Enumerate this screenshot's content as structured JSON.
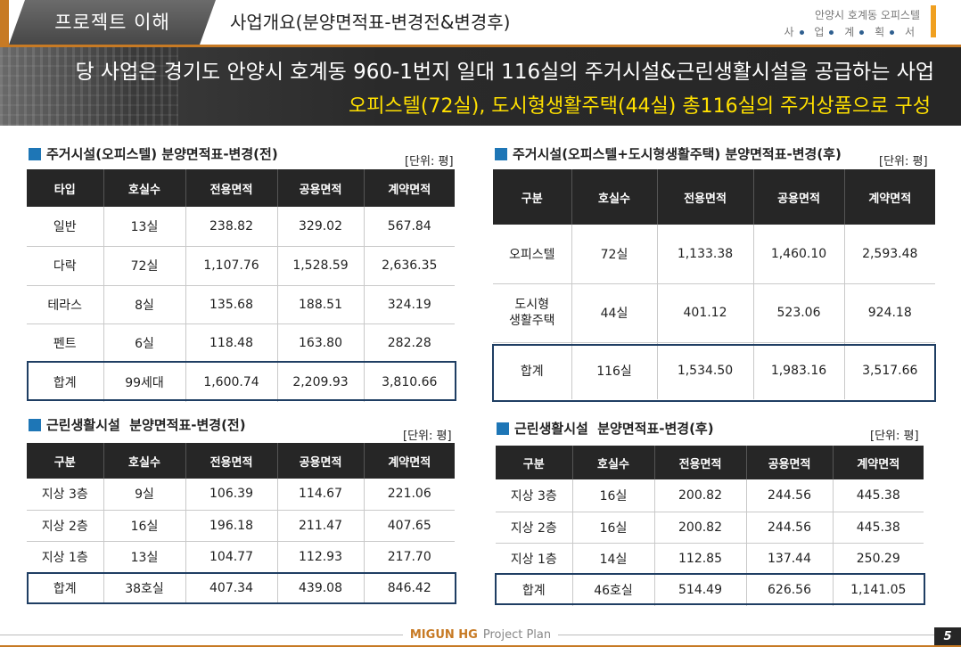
{
  "header": {
    "tab_label": "프로젝트 이해",
    "title": "사업개요(분양면적표-변경전&변경후)",
    "right_line1": "안양시 호계동 오피스텔",
    "right_line2_chars": [
      "사",
      "업",
      "계",
      "획",
      "서"
    ]
  },
  "banner": {
    "line1": "당 사업은 경기도 안양시 호계동 960-1번지 일대 116실의 주거시설&근린생활시설을 공급하는 사업",
    "line2": "오피스텔(72실), 도시형생활주택(44실) 총116실의 주거상품으로 구성"
  },
  "tables": {
    "housing_before": {
      "title": "주거시설(오피스텔) 분양면적표-변경(전)",
      "unit": "[단위: 평]",
      "headers": [
        "타입",
        "호실수",
        "전용면적",
        "공용면적",
        "계약면적"
      ],
      "rows": [
        [
          "일반",
          "13실",
          "238.82",
          "329.02",
          "567.84"
        ],
        [
          "다락",
          "72실",
          "1,107.76",
          "1,528.59",
          "2,636.35"
        ],
        [
          "테라스",
          "8실",
          "135.68",
          "188.51",
          "324.19"
        ],
        [
          "펜트",
          "6실",
          "118.48",
          "163.80",
          "282.28"
        ]
      ],
      "total": [
        "합계",
        "99세대",
        "1,600.74",
        "2,209.93",
        "3,810.66"
      ]
    },
    "housing_after": {
      "title": "주거시설(오피스텔+도시형생활주택) 분양면적표-변경(후)",
      "unit": "[단위: 평]",
      "headers": [
        "구분",
        "호실수",
        "전용면적",
        "공용면적",
        "계약면적"
      ],
      "rows": [
        [
          "오피스텔",
          "72실",
          "1,133.38",
          "1,460.10",
          "2,593.48"
        ],
        [
          "도시형\n생활주택",
          "44실",
          "401.12",
          "523.06",
          "924.18"
        ]
      ],
      "total": [
        "합계",
        "116실",
        "1,534.50",
        "1,983.16",
        "3,517.66"
      ]
    },
    "retail_before": {
      "title": "근린생활시설  분양면적표-변경(전)",
      "unit": "[단위: 평]",
      "headers": [
        "구분",
        "호실수",
        "전용면적",
        "공용면적",
        "계약면적"
      ],
      "rows": [
        [
          "지상 3층",
          "9실",
          "106.39",
          "114.67",
          "221.06"
        ],
        [
          "지상 2층",
          "16실",
          "196.18",
          "211.47",
          "407.65"
        ],
        [
          "지상 1층",
          "13실",
          "104.77",
          "112.93",
          "217.70"
        ]
      ],
      "total": [
        "합계",
        "38호실",
        "407.34",
        "439.08",
        "846.42"
      ]
    },
    "retail_after": {
      "title": "근린생활시설  분양면적표-변경(후)",
      "unit": "[단위: 평]",
      "headers": [
        "구분",
        "호실수",
        "전용면적",
        "공용면적",
        "계약면적"
      ],
      "rows": [
        [
          "지상 3층",
          "16실",
          "200.82",
          "244.56",
          "445.38"
        ],
        [
          "지상 2층",
          "16실",
          "200.82",
          "244.56",
          "445.38"
        ],
        [
          "지상 1층",
          "14실",
          "112.85",
          "137.44",
          "250.29"
        ]
      ],
      "total": [
        "합계",
        "46호실",
        "514.49",
        "626.56",
        "1,141.05"
      ]
    }
  },
  "footer": {
    "brand": "MIGUN HG",
    "plan": "Project Plan",
    "page": "5"
  }
}
